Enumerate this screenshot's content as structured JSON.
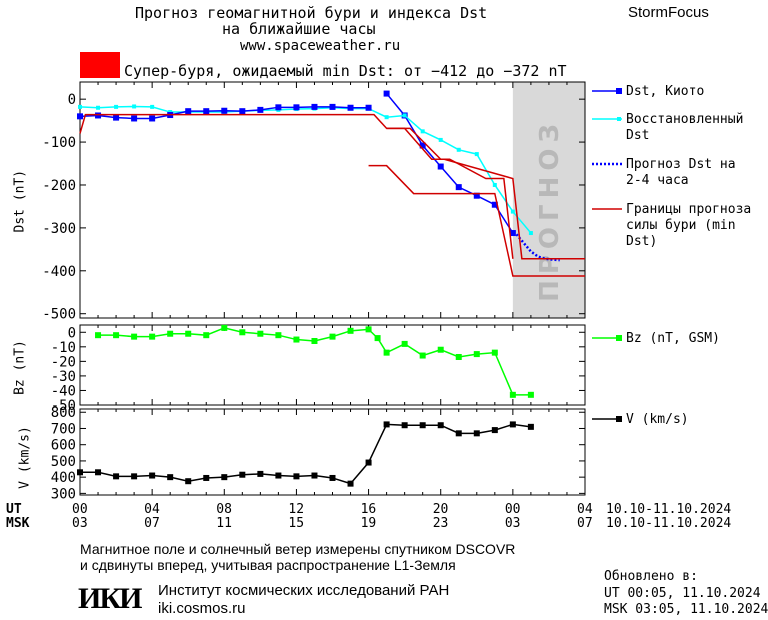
{
  "header": {
    "title_line1": "Прогноз геомагнитной бури и индекса Dst",
    "title_line2": "на ближайшие часы",
    "site": "www.spaceweather.ru",
    "brand": "StormFocus"
  },
  "alert": {
    "color": "#ff0000",
    "text": "Супер-буря, ожидаемый min Dst: от −412 до −372 nT"
  },
  "forecast_watermark": "ПРОГНОЗ",
  "chart_data": [
    {
      "type": "line",
      "ylabel": "Dst (nT)",
      "ylim": [
        -510,
        40
      ],
      "yticks": [
        0,
        -100,
        -200,
        -300,
        -400,
        -500
      ],
      "xlim": [
        0,
        28
      ],
      "forecast_region": [
        24,
        28
      ],
      "series": [
        {
          "name": "Dst, Киото",
          "color": "#0000ff",
          "marker": "square",
          "x": [
            17,
            18,
            19,
            20,
            21,
            22,
            23,
            24
          ],
          "y": [
            13,
            -38,
            -108,
            -157,
            -205,
            -225,
            -246,
            -312
          ]
        },
        {
          "name": "Восстановленный Dst",
          "color": "#00ffff",
          "marker": "small-square",
          "x": [
            0,
            1,
            2,
            3,
            4,
            5,
            6,
            7,
            8,
            9,
            10,
            11,
            12,
            13,
            14,
            15,
            16,
            17,
            18,
            19,
            20,
            21,
            22,
            23,
            24,
            25
          ],
          "y": [
            -18,
            -20,
            -18,
            -17,
            -18,
            -30,
            -30,
            -30,
            -30,
            -28,
            -26,
            -25,
            -23,
            -22,
            -20,
            -22,
            -22,
            -42,
            -38,
            -75,
            -95,
            -118,
            -128,
            -200,
            -262,
            -312
          ]
        },
        {
          "name": "",
          "color": "#0000ff",
          "marker": "square",
          "x": [
            0,
            1,
            2,
            3,
            4,
            5,
            6,
            7,
            8,
            9,
            10,
            11,
            12,
            13,
            14,
            15,
            16
          ],
          "y": [
            -40,
            -38,
            -43,
            -45,
            -45,
            -37,
            -28,
            -28,
            -27,
            -28,
            -25,
            -19,
            -19,
            -18,
            -18,
            -20,
            -20
          ]
        },
        {
          "name": "Прогноз Dst на 2-4 часа",
          "color": "#0000ff",
          "dash": "dotted",
          "x": [
            24.2,
            24.6,
            25,
            25.4,
            25.8,
            26.2,
            26.6
          ],
          "y": [
            -315,
            -335,
            -355,
            -367,
            -372,
            -374,
            -375
          ]
        },
        {
          "name": "Границы прогноза силы бури (min Dst)",
          "color": "#d00000",
          "segments": [
            {
              "x": [
                0,
                0.3,
                16,
                16.3,
                17,
                17.2,
                18,
                18.3,
                20,
                20.2,
                24,
                24.5,
                28
              ],
              "y": [
                -80,
                -36,
                -36,
                -36,
                -68,
                -68,
                -68,
                -68,
                -140,
                -140,
                -185,
                -372,
                -372
              ]
            },
            {
              "x": [
                16,
                17,
                18.5,
                20,
                23,
                24,
                28
              ],
              "y": [
                -155,
                -155,
                -220,
                -220,
                -220,
                -412,
                -412
              ]
            },
            {
              "x": [
                17,
                18,
                19.5,
                20.5,
                22.5,
                23.5,
                24
              ],
              "y": [
                -68,
                -68,
                -140,
                -140,
                -185,
                -185,
                -372
              ]
            }
          ]
        }
      ]
    },
    {
      "type": "line",
      "ylabel": "Bz (nT)",
      "ylim": [
        -50,
        5
      ],
      "yticks": [
        0,
        -10,
        -20,
        -30,
        -40,
        -50
      ],
      "series": [
        {
          "name": "Bz (nT, GSM)",
          "color": "#00ff00",
          "marker": "square",
          "x": [
            1,
            2,
            3,
            4,
            5,
            6,
            7,
            8,
            9,
            10,
            11,
            12,
            13,
            14,
            15,
            16,
            16.5,
            17,
            18,
            19,
            20,
            21,
            22,
            23,
            24,
            25
          ],
          "y": [
            -2,
            -2,
            -3,
            -3,
            -1,
            -1,
            -2,
            3,
            0,
            -1,
            -2,
            -5,
            -6,
            -3,
            1,
            2,
            -4,
            -14,
            -8,
            -16,
            -12,
            -17,
            -15,
            -14,
            -43,
            -43
          ]
        }
      ]
    },
    {
      "type": "line",
      "ylabel": "V (km/s)",
      "ylim": [
        290,
        820
      ],
      "yticks": [
        300,
        400,
        500,
        600,
        700,
        800
      ],
      "series": [
        {
          "name": "V (km/s)",
          "color": "#000000",
          "marker": "square",
          "x": [
            0,
            1,
            2,
            3,
            4,
            5,
            6,
            7,
            8,
            9,
            10,
            11,
            12,
            13,
            14,
            15,
            16,
            17,
            18,
            19,
            20,
            21,
            22,
            23,
            24,
            25
          ],
          "y": [
            430,
            430,
            405,
            405,
            410,
            400,
            375,
            395,
            400,
            415,
            420,
            410,
            405,
            410,
            395,
            360,
            490,
            725,
            720,
            720,
            720,
            670,
            670,
            690,
            725,
            710
          ]
        }
      ]
    }
  ],
  "x_axis": {
    "ut_label": "UT",
    "msk_label": "MSK",
    "ut_ticks": [
      "00",
      "04",
      "08",
      "12",
      "16",
      "20",
      "00",
      "04"
    ],
    "msk_ticks": [
      "03",
      "07",
      "11",
      "15",
      "19",
      "23",
      "03",
      "07"
    ],
    "ut_dates": "10.10-11.10.2024",
    "msk_dates": "10.10-11.10.2024"
  },
  "footer": {
    "note_line1": "Магнитное поле и солнечный ветер измерены спутником DSCOVR",
    "note_line2": "и сдвинуты вперед, учитывая распространение L1-Земля",
    "logo_text": "ИКИ",
    "institute": "Институт космических исследований РАН",
    "institute_url": "iki.cosmos.ru",
    "updated_label": "Обновлено в:",
    "updated_ut": "UT  00:05, 11.10.2024",
    "updated_msk": "MSK 03:05, 11.10.2024"
  }
}
